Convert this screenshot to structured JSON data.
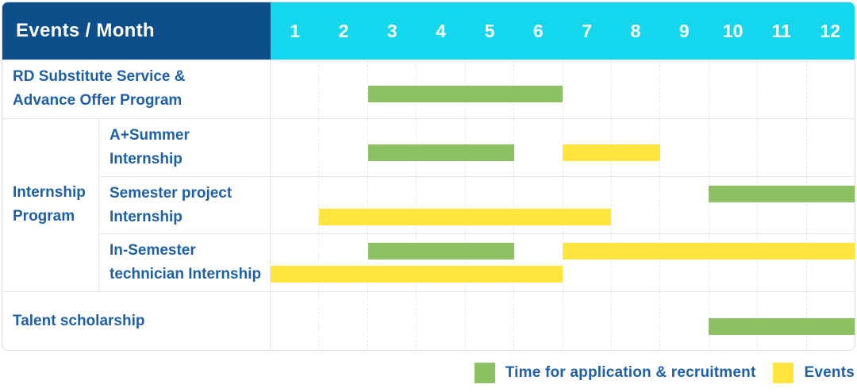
{
  "header": {
    "title": "Events / Month",
    "months": [
      "1",
      "2",
      "3",
      "4",
      "5",
      "6",
      "7",
      "8",
      "9",
      "10",
      "11",
      "12"
    ]
  },
  "colors": {
    "navy_header_bg": "#0d4e8b",
    "cyan_months_bg": "#14d7ee",
    "green": "#8cc264",
    "yellow": "#ffe53d",
    "label_blue": "#1d5fa9"
  },
  "chart_data": {
    "type": "bar",
    "variant": "gantt-timeline",
    "title": "Events / Month",
    "x_axis": {
      "label": "Month",
      "ticks": [
        1,
        2,
        3,
        4,
        5,
        6,
        7,
        8,
        9,
        10,
        11,
        12
      ],
      "range": [
        1,
        12
      ]
    },
    "grid": "dashed-vertical-month-lines",
    "legend_position": "bottom-right",
    "series_meaning": {
      "green": "Time for application & recruitment",
      "yellow": "Events"
    },
    "rows": [
      {
        "kind": "single",
        "label": "RD Substitute Service & Advance Offer Program",
        "label_lines": [
          "RD Substitute Service &",
          "Advance Offer Program"
        ],
        "lines": [
          [
            {
              "color": "green",
              "start": 3,
              "end": 6
            }
          ]
        ]
      },
      {
        "kind": "group",
        "label": "Internship Program",
        "label_lines": [
          "Internship",
          "Program"
        ],
        "children": [
          {
            "label": "A+Summer Internship",
            "label_lines": [
              "A+Summer",
              "Internship"
            ],
            "lines": [
              [
                {
                  "color": "green",
                  "start": 3,
                  "end": 5
                },
                {
                  "color": "yellow",
                  "start": 7,
                  "end": 8
                }
              ]
            ]
          },
          {
            "label": "Semester project Internship",
            "label_lines": [
              "Semester project",
              "Internship"
            ],
            "lines": [
              [
                {
                  "color": "green",
                  "start": 10,
                  "end": 12
                }
              ],
              [
                {
                  "color": "yellow",
                  "start": 2,
                  "end": 7
                }
              ]
            ]
          },
          {
            "label": "In-Semester technician Internship",
            "label_lines": [
              "In-Semester",
              "technician Internship"
            ],
            "lines": [
              [
                {
                  "color": "green",
                  "start": 3,
                  "end": 5
                },
                {
                  "color": "yellow",
                  "start": 7,
                  "end": 12
                }
              ],
              [
                {
                  "color": "yellow",
                  "start": 1,
                  "end": 6
                }
              ]
            ]
          }
        ]
      },
      {
        "kind": "single",
        "label": "Talent scholarship",
        "label_lines": [
          "Talent scholarship"
        ],
        "lines": [
          [
            {
              "color": "green",
              "start": 10,
              "end": 12
            }
          ]
        ]
      }
    ],
    "legend": [
      {
        "color": "green",
        "label": "Time for application & recruitment"
      },
      {
        "color": "yellow",
        "label": "Events"
      }
    ]
  }
}
